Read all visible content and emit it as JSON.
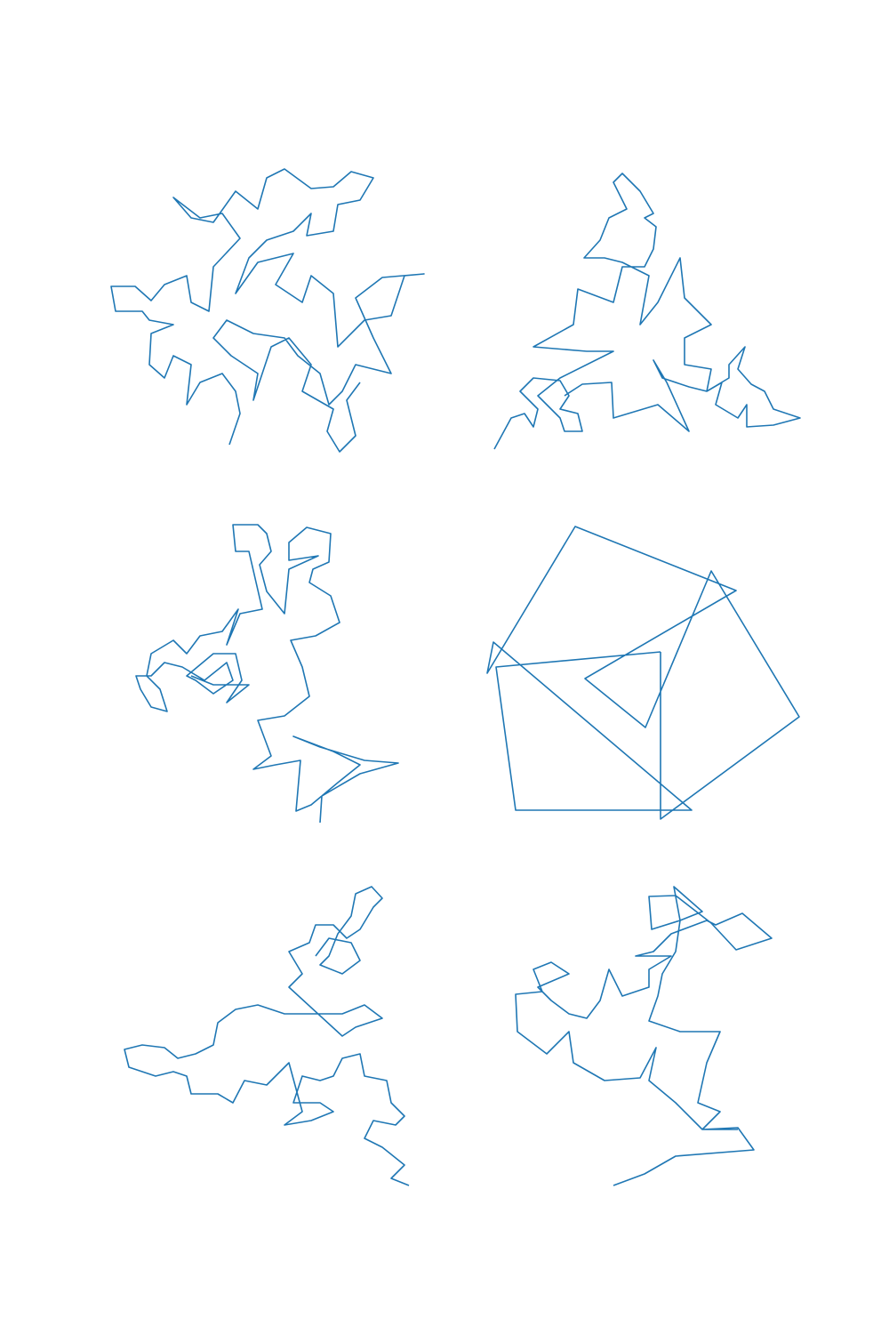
{
  "chart_data": [
    {
      "type": "line",
      "color": "#1f77b4",
      "xlim": [
        120,
        480
      ],
      "ylim": [
        510,
        185
      ],
      "x": [
        258,
        270,
        265,
        250,
        225,
        210,
        215,
        195,
        185,
        168,
        170,
        195,
        168,
        160,
        130,
        125,
        152,
        170,
        185,
        210,
        215,
        235,
        240,
        270,
        250,
        225,
        195,
        215,
        240,
        265,
        290,
        300,
        320,
        350,
        375,
        395,
        420,
        405,
        380,
        375,
        345,
        350,
        330,
        300,
        280,
        265,
        290,
        330,
        310,
        340,
        350,
        375,
        380,
        410,
        440,
        455,
        477,
        430,
        400,
        420,
        440,
        400,
        385,
        370,
        360,
        335,
        320,
        285,
        255,
        240,
        260,
        290,
        285,
        305,
        325,
        350,
        340,
        375,
        368,
        382,
        400,
        390,
        405
      ],
      "values": [
        500,
        465,
        440,
        420,
        430,
        455,
        410,
        400,
        425,
        410,
        375,
        365,
        360,
        350,
        350,
        322,
        322,
        338,
        320,
        310,
        340,
        350,
        300,
        268,
        240,
        245,
        222,
        245,
        250,
        215,
        235,
        200,
        190,
        212,
        210,
        193,
        200,
        225,
        230,
        260,
        265,
        240,
        260,
        270,
        290,
        330,
        295,
        285,
        320,
        340,
        310,
        330,
        390,
        360,
        355,
        310,
        308,
        312,
        335,
        380,
        420,
        410,
        440,
        455,
        420,
        400,
        380,
        375,
        360,
        380,
        400,
        420,
        450,
        390,
        380,
        410,
        440,
        460,
        485,
        508,
        490,
        450,
        430
      ]
    },
    {
      "type": "line",
      "color": "#1f77b4",
      "xlim": [
        545,
        905
      ],
      "ylim": [
        510,
        185
      ],
      "x": [
        556,
        575,
        590,
        600,
        605,
        585,
        600,
        630,
        640,
        630,
        650,
        655,
        635,
        630,
        620,
        605,
        630,
        690,
        660,
        600,
        645,
        650,
        690,
        700,
        725,
        735,
        738,
        725,
        735,
        720,
        700,
        690,
        705,
        685,
        675,
        657,
        680,
        700,
        730,
        720,
        740,
        765,
        770,
        800,
        770,
        770,
        800,
        795,
        812,
        805,
        830,
        840,
        840,
        870,
        900,
        870,
        860,
        845,
        830,
        838,
        820,
        820,
        795,
        775,
        745,
        735,
        750,
        775,
        740,
        690,
        688,
        655,
        635
      ],
      "values": [
        505,
        470,
        465,
        480,
        460,
        440,
        425,
        428,
        445,
        460,
        465,
        485,
        485,
        470,
        460,
        445,
        425,
        395,
        395,
        390,
        365,
        325,
        340,
        300,
        300,
        280,
        255,
        245,
        240,
        215,
        195,
        205,
        235,
        245,
        270,
        290,
        290,
        295,
        310,
        365,
        340,
        290,
        335,
        365,
        380,
        410,
        415,
        440,
        430,
        455,
        470,
        455,
        480,
        478,
        470,
        460,
        440,
        432,
        415,
        390,
        410,
        425,
        440,
        435,
        425,
        405,
        430,
        485,
        455,
        470,
        430,
        432,
        445
      ]
    },
    {
      "type": "line",
      "color": "#1f77b4",
      "xlim": [
        150,
        455
      ],
      "ylim": [
        928,
        585
      ],
      "x": [
        360,
        362,
        405,
        448,
        410,
        360,
        330,
        375,
        405,
        380,
        350,
        333,
        338,
        310,
        285,
        305,
        290,
        320,
        348,
        340,
        327,
        355,
        382,
        372,
        348,
        352,
        370,
        372,
        345,
        325,
        325,
        358,
        325,
        320,
        300,
        292,
        305,
        300,
        290,
        262,
        265,
        280,
        295,
        270,
        255,
        268,
        250,
        225,
        210,
        195,
        170,
        165,
        180,
        188,
        170,
        158,
        153,
        170,
        185,
        205,
        230,
        255,
        262,
        240,
        220,
        210,
        240,
        265,
        272,
        255,
        280,
        265,
        240,
        215
      ],
      "values": [
        925,
        895,
        870,
        858,
        855,
        840,
        828,
        845,
        860,
        880,
        905,
        912,
        855,
        860,
        865,
        850,
        810,
        805,
        783,
        750,
        720,
        715,
        700,
        670,
        655,
        640,
        632,
        600,
        593,
        610,
        630,
        625,
        640,
        690,
        665,
        635,
        620,
        600,
        590,
        590,
        620,
        620,
        685,
        690,
        725,
        685,
        710,
        715,
        735,
        720,
        735,
        760,
        775,
        800,
        795,
        775,
        760,
        760,
        745,
        750,
        765,
        745,
        765,
        780,
        765,
        760,
        735,
        735,
        765,
        790,
        770,
        770,
        770,
        760
      ]
    },
    {
      "type": "line",
      "color": "#1f77b4",
      "xlim": [
        545,
        905
      ],
      "ylim": [
        928,
        585
      ],
      "x": [
        743,
        743,
        899,
        800,
        726,
        658,
        828,
        647,
        548,
        555,
        778,
        580,
        558,
        743
      ],
      "values": [
        733,
        921,
        806,
        642,
        818,
        763,
        664,
        592,
        757,
        722,
        911,
        911,
        750,
        733
      ]
    },
    {
      "type": "line",
      "color": "#1f77b4",
      "xlim": [
        135,
        468
      ],
      "ylim": [
        1336,
        993
      ],
      "x": [
        460,
        440,
        455,
        430,
        410,
        420,
        445,
        455,
        440,
        435,
        410,
        405,
        385,
        375,
        360,
        340,
        330,
        360,
        375,
        350,
        320,
        340,
        325,
        310,
        300,
        275,
        262,
        245,
        215,
        210,
        195,
        175,
        145,
        140,
        160,
        185,
        200,
        220,
        240,
        245,
        265,
        290,
        320,
        385,
        410,
        430,
        400,
        385,
        325,
        340,
        325,
        348,
        355,
        375,
        390,
        405,
        420,
        430,
        418,
        400,
        395,
        380,
        370,
        360,
        385,
        405,
        395,
        370,
        355
      ],
      "values": [
        1333,
        1325,
        1310,
        1290,
        1280,
        1260,
        1265,
        1255,
        1240,
        1215,
        1210,
        1185,
        1190,
        1210,
        1215,
        1210,
        1240,
        1240,
        1250,
        1260,
        1265,
        1250,
        1195,
        1210,
        1220,
        1215,
        1240,
        1230,
        1230,
        1210,
        1205,
        1210,
        1200,
        1180,
        1175,
        1178,
        1190,
        1185,
        1175,
        1150,
        1135,
        1130,
        1140,
        1140,
        1130,
        1145,
        1155,
        1165,
        1110,
        1095,
        1070,
        1060,
        1040,
        1040,
        1055,
        1045,
        1020,
        1010,
        997,
        1005,
        1030,
        1050,
        1075,
        1085,
        1095,
        1080,
        1060,
        1055,
        1075
      ]
    },
    {
      "type": "line",
      "color": "#1f77b4",
      "xlim": [
        575,
        872
      ],
      "ylim": [
        1336,
        993
      ],
      "x": [
        690,
        725,
        760,
        848,
        830,
        790,
        810,
        785,
        795,
        810,
        765,
        730,
        740,
        745,
        760,
        765,
        790,
        758,
        765,
        733,
        730,
        760,
        800,
        828,
        868,
        835,
        805,
        795,
        755,
        735,
        715,
        755,
        730,
        730,
        700,
        685,
        675,
        660,
        640,
        620,
        605,
        640,
        620,
        600,
        610,
        580,
        582,
        615,
        640,
        645,
        680,
        720,
        738,
        730,
        760,
        790,
        830
      ],
      "values": [
        1333,
        1320,
        1300,
        1293,
        1268,
        1270,
        1250,
        1240,
        1195,
        1160,
        1160,
        1148,
        1120,
        1095,
        1070,
        1035,
        1025,
        997,
        1035,
        1045,
        1008,
        1007,
        1038,
        1068,
        1055,
        1027,
        1040,
        1035,
        1050,
        1070,
        1075,
        1075,
        1090,
        1110,
        1120,
        1090,
        1125,
        1145,
        1140,
        1125,
        1110,
        1095,
        1082,
        1090,
        1115,
        1118,
        1160,
        1185,
        1160,
        1195,
        1215,
        1212,
        1178,
        1215,
        1240,
        1270,
        1270
      ]
    }
  ]
}
